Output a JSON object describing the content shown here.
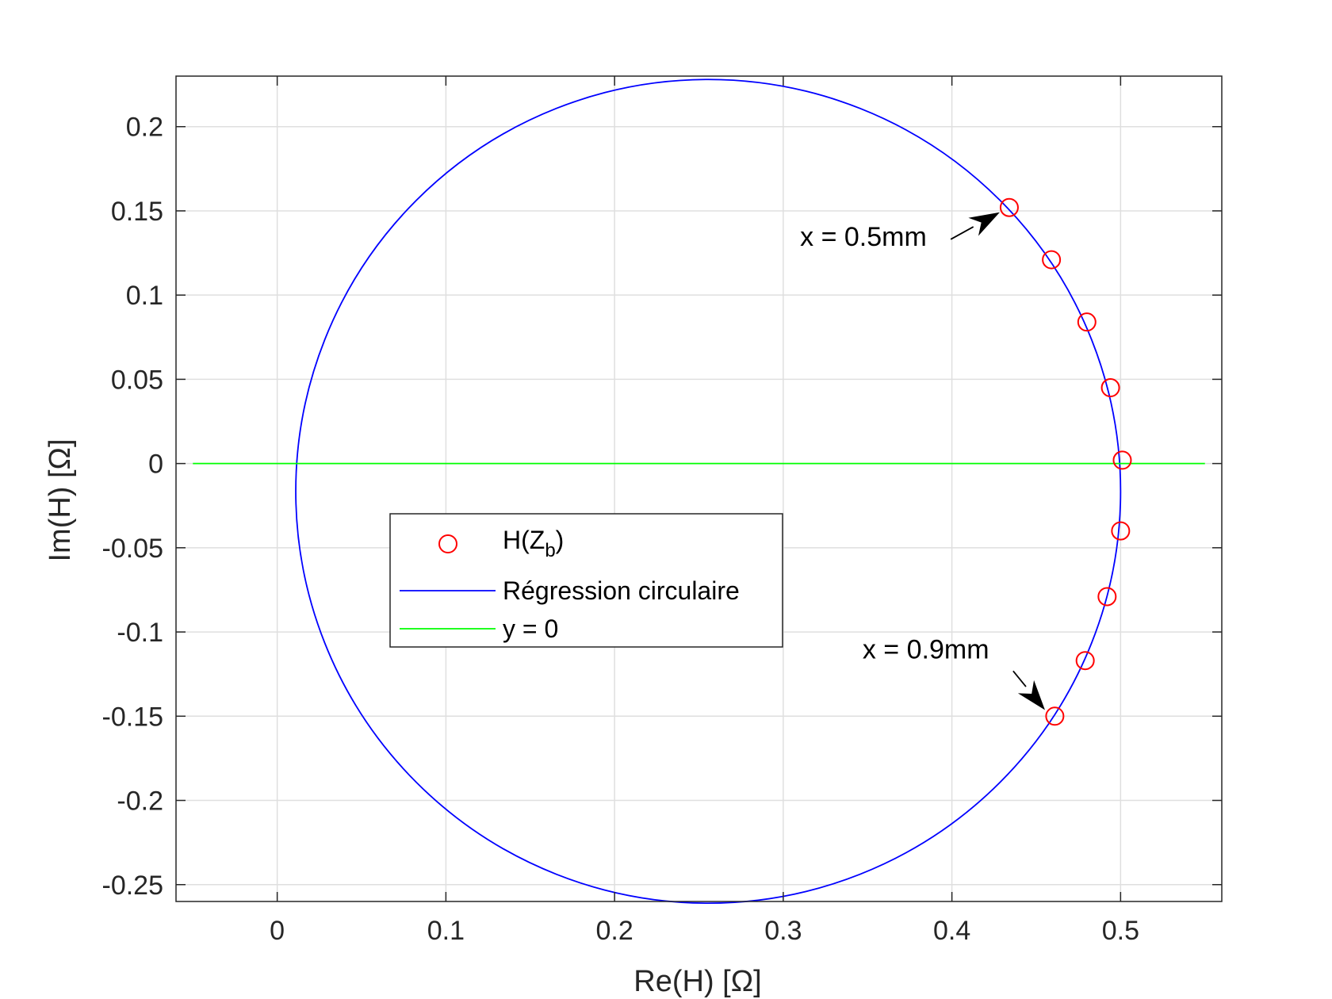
{
  "chart_data": {
    "type": "scatter",
    "xlabel": "Re(H) [Ω]",
    "ylabel": "Im(H) [Ω]",
    "xlim": [
      -0.06,
      0.56
    ],
    "ylim": [
      -0.26,
      0.23
    ],
    "xticks": [
      0,
      0.1,
      0.2,
      0.3,
      0.4,
      0.5
    ],
    "xtick_labels": [
      "0",
      "0.1",
      "0.2",
      "0.3",
      "0.4",
      "0.5"
    ],
    "yticks": [
      0.2,
      0.15,
      0.1,
      0.05,
      0,
      -0.05,
      -0.1,
      -0.15,
      -0.2,
      -0.25
    ],
    "ytick_labels": [
      "0.2",
      "0.15",
      "0.1",
      "0.05",
      "0",
      "-0.05",
      "-0.1",
      "-0.15",
      "-0.2",
      "-0.25"
    ],
    "grid": true,
    "legend_position": "center-left",
    "series": [
      {
        "name": "H(Z",
        "name_sub": "b",
        "name_end": ")",
        "kind": "markers",
        "marker": "circle",
        "color": "#ff0000",
        "x": [
          0.434,
          0.459,
          0.48,
          0.494,
          0.501,
          0.5,
          0.492,
          0.479,
          0.461
        ],
        "y": [
          0.152,
          0.121,
          0.084,
          0.045,
          0.002,
          -0.04,
          -0.079,
          -0.117,
          -0.15
        ]
      },
      {
        "name": "Régression circulaire",
        "kind": "circle",
        "color": "#0000ff",
        "center": [
          0.2555,
          -0.0165
        ],
        "radius": 0.2445
      },
      {
        "name": "y = 0",
        "kind": "line",
        "color": "#00ff00",
        "x": [
          -0.05,
          0.55
        ],
        "y": [
          0,
          0
        ]
      }
    ],
    "annotations": [
      {
        "text": "x = 0.5mm",
        "target": [
          0.434,
          0.152
        ],
        "text_at": [
          0.31,
          0.135
        ]
      },
      {
        "text": "x = 0.9mm",
        "target": [
          0.458,
          -0.152
        ],
        "text_at": [
          0.347,
          -0.11
        ]
      }
    ]
  }
}
